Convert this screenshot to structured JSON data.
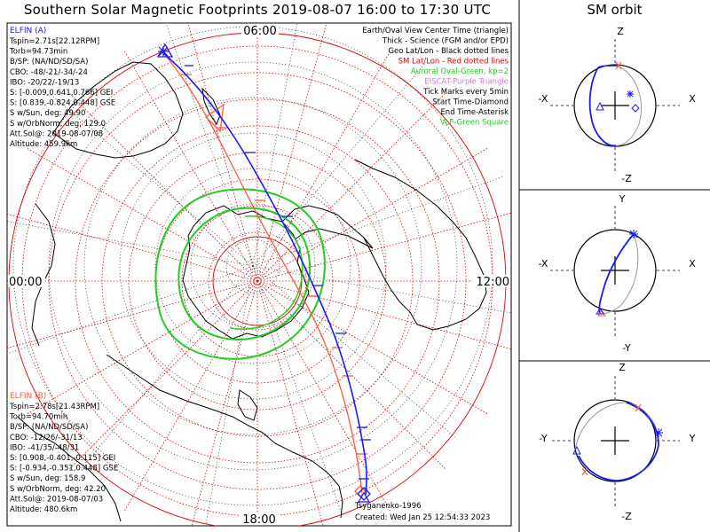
{
  "title": "Southern Solar Magnetic Footprints 2019-08-07 16:00 to 17:30 UTC",
  "orbit_title": "SM orbit",
  "mlt_labels": {
    "top": "06:00",
    "left": "00:00",
    "right": "12:00",
    "bottom": "18:00"
  },
  "elfin_a": {
    "name": "ELFIN (A)",
    "color": "#1a1aff",
    "lines": [
      "Tspin=2.71s[22.12RPM]",
      "Torb=94.73min",
      "B/SP: (NA/ND/SD/SA)",
      "CBO: -48/-21/-34/-24",
      "IBO: -20/22/-19/13",
      "S: [-0.009,0.641,0.766] GEI",
      "S: [0.839,-0.824,0.448] GSE",
      "S w/Sun, deg: 49.90",
      "S w/OrbNorm, deg: 129.0",
      "Att.Sol@: 2019-08-07/08",
      "Altitude: 459.9km"
    ]
  },
  "elfin_b": {
    "name": "ELFIN (B)",
    "color": "#ff5a3c",
    "lines": [
      "Tspin=2.78s[21.43RPM]",
      "Torb=94.70min",
      "B/SP: (NA/ND/SD/SA)",
      "CBO: -12/26/-31/13",
      "IBO: -41/35/-48/31",
      "S: [0.908,-0.401,-0.115] GEI",
      "S: [-0.934,-0.351,0.448] GSE",
      "S w/Sun, deg: 158.9",
      "S w/OrbNorm, deg: 42.20",
      "Att.Sol@: 2019-08-07/03",
      "Altitude: 480.6km"
    ]
  },
  "legend": [
    {
      "text": "Earth/Oval View Center Time (triangle)",
      "color": "#000000"
    },
    {
      "text": "Thick - Science (FGM and/or EPD)",
      "color": "#000000"
    },
    {
      "text": "Geo Lat/Lon - Black dotted lines",
      "color": "#000000"
    },
    {
      "text": "SM Lat/Lon - Red dotted lines",
      "color": "#e00000"
    },
    {
      "text": "Auroral Oval-Green, kp=2",
      "color": "#22cc22"
    },
    {
      "text": "EISCAT-Purple Triangle",
      "color": "#d07ad0"
    },
    {
      "text": "Tick Marks every 5min",
      "color": "#000000"
    },
    {
      "text": "Start Time-Diamond",
      "color": "#000000"
    },
    {
      "text": "End Time-Asterisk",
      "color": "#000000"
    },
    {
      "text": "VLF-Green Square",
      "color": "#22cc22"
    }
  ],
  "model": "Tsyganenko-1996",
  "created": "Created: Wed Jan 25 12:54:33 2023",
  "panels": [
    {
      "top": "Z",
      "bottom": "-Z",
      "left": "-X",
      "right": "X"
    },
    {
      "top": "Y",
      "bottom": "-Y",
      "left": "-X",
      "right": "X"
    },
    {
      "top": "Z",
      "bottom": "-Z",
      "left": "-Y",
      "right": "Y"
    }
  ],
  "colors": {
    "sm_grid": "#e00000",
    "oval": "#22cc22",
    "track_a": "#1a1aff",
    "track_b": "#ff5a3c",
    "orbit_gray": "#999999"
  }
}
